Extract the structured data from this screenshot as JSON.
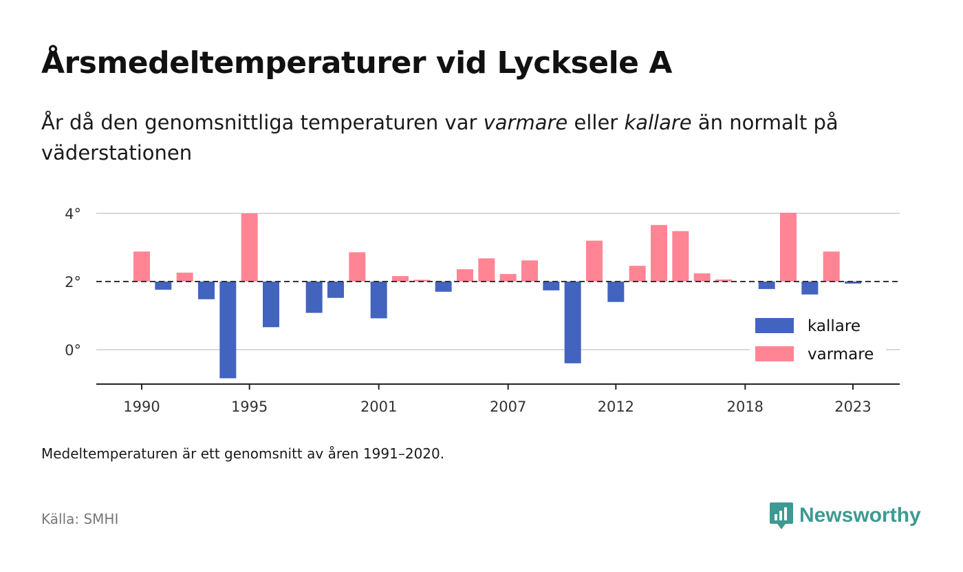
{
  "title": "Årsmedeltemperaturer vid Lycksele A",
  "subtitle_parts": [
    "År då den genomsnittliga temperaturen var ",
    "varmare",
    " eller ",
    "kallare",
    " än normalt på väderstationen"
  ],
  "note": "Medeltemperaturen är ett genomsnitt av åren 1991–2020.",
  "source": "Källa: SMHI",
  "brand": "Newsworthy",
  "colors": {
    "kallare": "#4264bf",
    "varmare": "#ff8595",
    "brand": "#3d9a92"
  },
  "chart_data": {
    "type": "bar",
    "baseline": 2.0,
    "ylim": [
      -1,
      4
    ],
    "yticks": [
      {
        "value": 0,
        "label": "0°"
      },
      {
        "value": 2,
        "label": "2°"
      },
      {
        "value": 4,
        "label": "4°"
      }
    ],
    "xticks": [
      1990,
      1995,
      2001,
      2007,
      2012,
      2018,
      2023
    ],
    "xlim": [
      1989,
      2024
    ],
    "legend": {
      "position": "bottom-right",
      "items": [
        {
          "key": "kallare",
          "label": "kallare"
        },
        {
          "key": "varmare",
          "label": "varmare"
        }
      ]
    },
    "years": [
      1990,
      1991,
      1992,
      1993,
      1994,
      1995,
      1996,
      1997,
      1998,
      1999,
      2000,
      2001,
      2002,
      2003,
      2004,
      2005,
      2006,
      2007,
      2008,
      2009,
      2010,
      2011,
      2012,
      2013,
      2014,
      2015,
      2016,
      2017,
      2018,
      2019,
      2020,
      2021,
      2022,
      2023
    ],
    "values": [
      2.88,
      1.76,
      2.26,
      1.48,
      -0.84,
      4.0,
      0.66,
      null,
      1.08,
      1.52,
      2.86,
      0.92,
      2.16,
      2.05,
      1.7,
      2.36,
      2.68,
      2.22,
      2.62,
      1.74,
      -0.4,
      3.2,
      1.4,
      2.46,
      3.66,
      3.48,
      2.24,
      2.06,
      null,
      1.78,
      4.02,
      1.62,
      2.88,
      1.94
    ]
  }
}
